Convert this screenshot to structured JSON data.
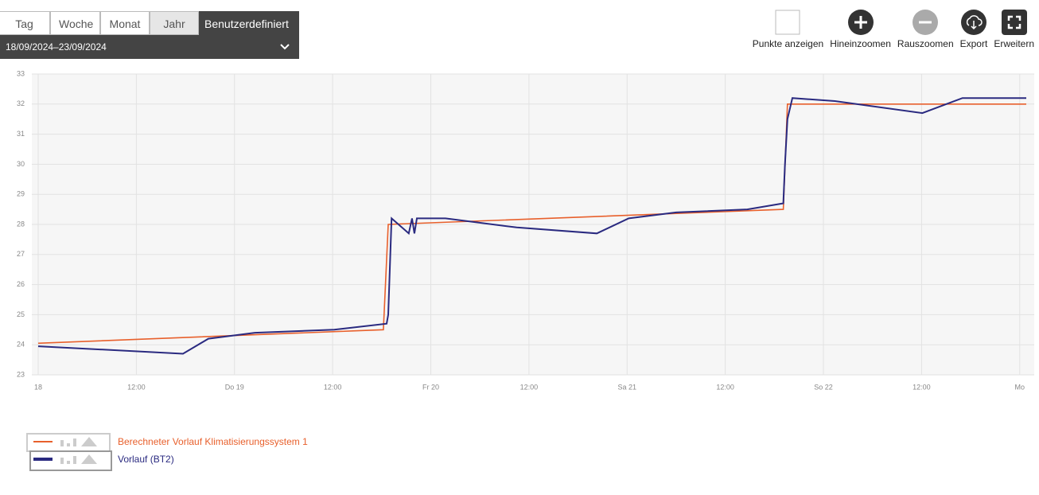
{
  "toolbar": {
    "tabs": [
      "Tag",
      "Woche",
      "Monat",
      "Jahr",
      "Benutzerdefiniert"
    ],
    "date_range": "18/09/2024–23/09/2024",
    "actions": [
      "Punkte anzeigen",
      "Hineinzoomen",
      "Rauszoomen",
      "Export",
      "Erweitern"
    ]
  },
  "chart_data": {
    "type": "line",
    "xlim": [
      0,
      120.8
    ],
    "ylim": [
      23,
      33
    ],
    "yticks": [
      23,
      24,
      25,
      26,
      27,
      28,
      29,
      30,
      31,
      32,
      33
    ],
    "xticks": [
      {
        "value": 0,
        "label": "18"
      },
      {
        "value": 12,
        "label": "12:00"
      },
      {
        "value": 24,
        "label": "Do 19"
      },
      {
        "value": 36,
        "label": "12:00"
      },
      {
        "value": 48,
        "label": "Fr 20"
      },
      {
        "value": 60,
        "label": "12:00"
      },
      {
        "value": 72,
        "label": "Sa 21"
      },
      {
        "value": 84,
        "label": "12:00"
      },
      {
        "value": 96,
        "label": "So 22"
      },
      {
        "value": 108,
        "label": "12:00"
      },
      {
        "value": 120,
        "label": "Mo"
      }
    ],
    "grid": true,
    "series": [
      {
        "name": "Berechneter Vorlauf Klimatisierungssystem 1",
        "color": "#e8602c",
        "x": [
          0,
          42.2,
          42.8,
          91.1,
          91.6,
          120.8
        ],
        "values": [
          24.05,
          24.5,
          28.0,
          28.5,
          32.0,
          32.0
        ]
      },
      {
        "name": "Vorlauf (BT2)",
        "color": "#2a2a80",
        "x": [
          0,
          17.7,
          20.8,
          26.5,
          36.2,
          42.6,
          42.8,
          43.2,
          45.3,
          45.7,
          46.0,
          46.3,
          49.8,
          58.5,
          68.3,
          72.2,
          78,
          86.7,
          91.1,
          91.3,
          91.6,
          92.2,
          97.4,
          108.1,
          113,
          120.8
        ],
        "values": [
          23.95,
          23.7,
          24.2,
          24.4,
          24.5,
          24.7,
          25,
          28.2,
          27.7,
          28.2,
          27.7,
          28.2,
          28.2,
          27.9,
          27.7,
          28.2,
          28.4,
          28.5,
          28.7,
          30,
          31.5,
          32.2,
          32.1,
          31.7,
          32.2,
          32.2
        ]
      }
    ]
  }
}
